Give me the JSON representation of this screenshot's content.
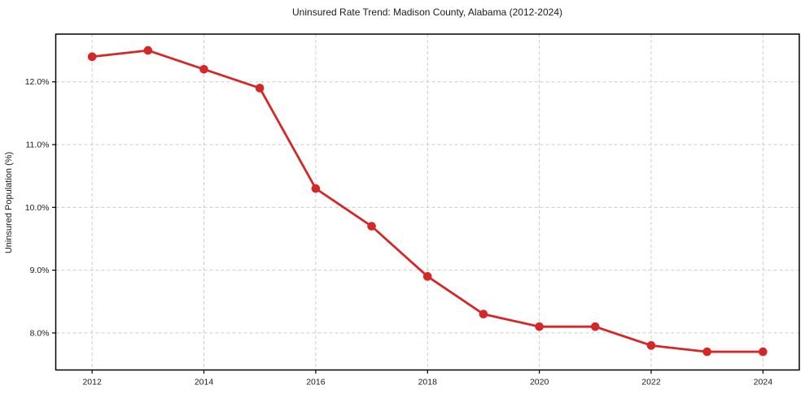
{
  "chart_data": {
    "type": "line",
    "title": "Uninsured Rate Trend: Madison County, Alabama (2012-2024)",
    "xlabel": "",
    "ylabel": "Uninsured Population (%)",
    "x": [
      2012,
      2013,
      2014,
      2015,
      2016,
      2017,
      2018,
      2019,
      2020,
      2021,
      2022,
      2023,
      2024
    ],
    "values": [
      12.4,
      12.5,
      12.2,
      11.9,
      10.3,
      9.7,
      8.9,
      8.3,
      8.1,
      8.1,
      7.8,
      7.7,
      7.7
    ],
    "x_ticks": [
      2012,
      2014,
      2016,
      2018,
      2020,
      2022,
      2024
    ],
    "x_tick_labels": [
      "2012",
      "2014",
      "2016",
      "2018",
      "2020",
      "2022",
      "2024"
    ],
    "y_ticks": [
      8.0,
      9.0,
      10.0,
      11.0,
      12.0
    ],
    "y_tick_labels": [
      "8.0%",
      "9.0%",
      "10.0%",
      "11.0%",
      "12.0%"
    ],
    "xlim": [
      2011.35,
      2024.65
    ],
    "ylim": [
      7.41,
      12.76
    ],
    "grid": true,
    "grid_style": "dashed",
    "legend": "none",
    "colors": {
      "line": "#d62728",
      "marker": "#d62728",
      "grid": "#cccccc",
      "spine": "#000000",
      "text": "#1a1a1a",
      "background": "#ffffff"
    }
  }
}
